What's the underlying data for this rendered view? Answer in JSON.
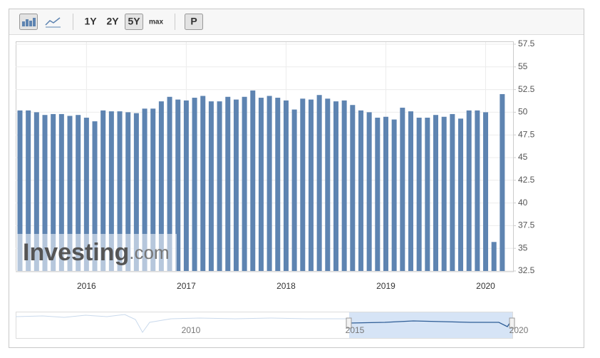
{
  "toolbar": {
    "ranges": [
      "1Y",
      "2Y",
      "5Y",
      "max"
    ],
    "pattern_button": "P"
  },
  "watermark": {
    "brand": "Investing",
    "suffix": ".com"
  },
  "navigator": {
    "labels": [
      "2010",
      "2015",
      "2020"
    ]
  },
  "chart_data": {
    "type": "bar",
    "color": "#5e84b1",
    "grid": true,
    "categories": [
      null,
      null,
      null,
      null,
      null,
      null,
      null,
      null,
      "2016",
      null,
      null,
      null,
      null,
      null,
      null,
      null,
      null,
      null,
      null,
      null,
      "2017",
      null,
      null,
      null,
      null,
      null,
      null,
      null,
      null,
      null,
      null,
      null,
      "2018",
      null,
      null,
      null,
      null,
      null,
      null,
      null,
      null,
      null,
      null,
      null,
      "2019",
      null,
      null,
      null,
      null,
      null,
      null,
      null,
      null,
      null,
      null,
      null,
      "2020",
      null,
      null
    ],
    "values": [
      50.2,
      50.2,
      50.0,
      49.7,
      49.8,
      49.8,
      49.6,
      49.7,
      49.4,
      49.0,
      50.2,
      50.1,
      50.1,
      50.0,
      49.9,
      50.4,
      50.4,
      51.2,
      51.7,
      51.4,
      51.3,
      51.6,
      51.8,
      51.2,
      51.2,
      51.7,
      51.4,
      51.7,
      52.4,
      51.6,
      51.8,
      51.6,
      51.3,
      50.3,
      51.5,
      51.4,
      51.9,
      51.5,
      51.2,
      51.3,
      50.8,
      50.2,
      50.0,
      49.4,
      49.5,
      49.2,
      50.5,
      50.1,
      49.4,
      49.4,
      49.7,
      49.5,
      49.8,
      49.3,
      50.2,
      50.2,
      50.0,
      35.7,
      52.0
    ],
    "ylim": [
      32.5,
      57.5
    ],
    "yticks": [
      32.5,
      35,
      37.5,
      40,
      42.5,
      45,
      47.5,
      50,
      52.5,
      55,
      57.5
    ]
  }
}
